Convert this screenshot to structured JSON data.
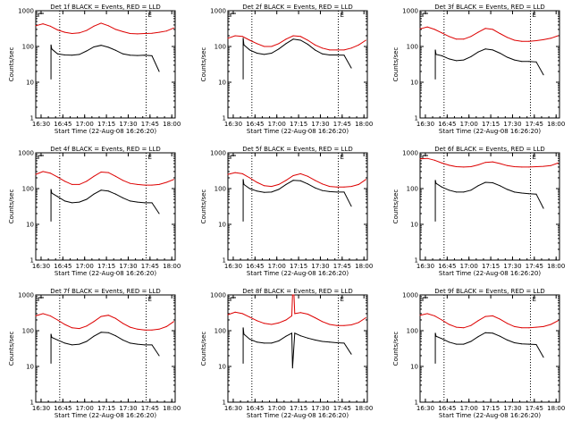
{
  "colors": {
    "events": "#000000",
    "lld": "#dd0000"
  },
  "common": {
    "ylabel": "Counts/sec",
    "xlabel": "Start Time (22-Aug-08 16:26:20)",
    "xticks": [
      "16:30",
      "16:45",
      "17:00",
      "17:15",
      "17:30",
      "17:45",
      "18:00"
    ],
    "xticks_min": [
      3.67,
      18.67,
      33.67,
      48.67,
      63.67,
      78.67,
      93.67
    ],
    "yticks": [
      "1",
      "10",
      "100",
      "1000"
    ],
    "ylim": [
      1,
      1000
    ],
    "xlim_min": [
      0,
      96
    ],
    "markers_min": [
      16.5,
      76.0
    ],
    "flag_text": "E"
  },
  "chart_data": [
    {
      "type": "line",
      "title": "Det 1f BLACK = Events, RED = LLD",
      "event_start": 10.5,
      "event_end": 85.0,
      "series": [
        {
          "name": "Events",
          "x": [
            10.5,
            11,
            15,
            20,
            25,
            30,
            35,
            40,
            45,
            50,
            55,
            60,
            65,
            70,
            75,
            80,
            85
          ],
          "values": [
            110,
            85,
            62,
            58,
            57,
            60,
            75,
            97,
            108,
            95,
            78,
            62,
            57,
            56,
            57,
            55,
            20
          ]
        },
        {
          "name": "LLD",
          "x": [
            0,
            5,
            10,
            15,
            20,
            25,
            30,
            35,
            40,
            45,
            50,
            55,
            60,
            65,
            70,
            75,
            80,
            85,
            90,
            95
          ],
          "values": [
            380,
            430,
            370,
            290,
            250,
            230,
            240,
            280,
            370,
            450,
            380,
            300,
            260,
            230,
            225,
            230,
            235,
            250,
            270,
            330
          ]
        }
      ]
    },
    {
      "type": "line",
      "title": "Det 2f BLACK = Events, RED = LLD",
      "event_start": 10.5,
      "event_end": 85.0,
      "series": [
        {
          "name": "Events",
          "x": [
            10.5,
            11,
            15,
            20,
            25,
            30,
            35,
            40,
            45,
            50,
            55,
            60,
            65,
            70,
            75,
            80,
            85
          ],
          "values": [
            170,
            110,
            80,
            65,
            60,
            65,
            85,
            120,
            160,
            150,
            115,
            80,
            62,
            58,
            58,
            57,
            25
          ]
        },
        {
          "name": "LLD",
          "x": [
            0,
            5,
            10,
            15,
            20,
            25,
            30,
            35,
            40,
            45,
            50,
            55,
            60,
            65,
            70,
            75,
            80,
            85,
            90,
            95
          ],
          "values": [
            170,
            200,
            190,
            150,
            120,
            100,
            100,
            120,
            160,
            200,
            190,
            150,
            110,
            90,
            80,
            80,
            80,
            90,
            110,
            150
          ]
        }
      ]
    },
    {
      "type": "line",
      "title": "Det 3f BLACK = Events, RED = LLD",
      "event_start": 10.5,
      "event_end": 85.0,
      "series": [
        {
          "name": "Events",
          "x": [
            10.5,
            11,
            15,
            20,
            25,
            30,
            35,
            40,
            45,
            50,
            55,
            60,
            65,
            70,
            75,
            80,
            85
          ],
          "values": [
            80,
            60,
            55,
            45,
            40,
            42,
            52,
            70,
            85,
            80,
            65,
            50,
            42,
            38,
            38,
            37,
            16
          ]
        },
        {
          "name": "LLD",
          "x": [
            0,
            5,
            10,
            15,
            20,
            25,
            30,
            35,
            40,
            45,
            50,
            55,
            60,
            65,
            70,
            75,
            80,
            85,
            90,
            95
          ],
          "values": [
            310,
            350,
            300,
            240,
            190,
            160,
            160,
            190,
            250,
            320,
            300,
            230,
            180,
            150,
            140,
            140,
            145,
            155,
            170,
            200
          ]
        }
      ]
    },
    {
      "type": "line",
      "title": "Det 4f BLACK = Events, RED = LLD",
      "event_start": 10.5,
      "event_end": 85.0,
      "series": [
        {
          "name": "Events",
          "x": [
            10.5,
            11,
            15,
            20,
            25,
            30,
            35,
            40,
            45,
            50,
            55,
            60,
            65,
            70,
            75,
            80,
            85
          ],
          "values": [
            95,
            75,
            60,
            45,
            40,
            42,
            50,
            70,
            90,
            85,
            70,
            55,
            45,
            42,
            40,
            40,
            20
          ]
        },
        {
          "name": "LLD",
          "x": [
            0,
            5,
            10,
            15,
            20,
            25,
            30,
            35,
            40,
            45,
            50,
            55,
            60,
            65,
            70,
            75,
            80,
            85,
            90,
            95
          ],
          "values": [
            250,
            300,
            270,
            210,
            160,
            130,
            130,
            160,
            220,
            290,
            280,
            220,
            170,
            140,
            130,
            125,
            125,
            130,
            150,
            180
          ]
        }
      ]
    },
    {
      "type": "line",
      "title": "Det 5f BLACK = Events, RED = LLD",
      "event_start": 10.5,
      "event_end": 85.0,
      "series": [
        {
          "name": "Events",
          "x": [
            10.5,
            11,
            15,
            20,
            25,
            30,
            35,
            40,
            45,
            50,
            55,
            60,
            65,
            70,
            75,
            80,
            85
          ],
          "values": [
            180,
            130,
            100,
            85,
            78,
            80,
            95,
            130,
            170,
            165,
            135,
            105,
            88,
            82,
            80,
            80,
            32
          ]
        },
        {
          "name": "LLD",
          "x": [
            0,
            5,
            10,
            15,
            20,
            25,
            30,
            35,
            40,
            45,
            50,
            55,
            60,
            65,
            70,
            75,
            80,
            85,
            90,
            95
          ],
          "values": [
            250,
            280,
            260,
            200,
            150,
            120,
            115,
            130,
            170,
            230,
            260,
            220,
            170,
            135,
            115,
            110,
            110,
            115,
            130,
            180
          ]
        }
      ]
    },
    {
      "type": "line",
      "title": "Det 6f BLACK = Events, RED = LLD",
      "event_start": 10.5,
      "event_end": 85.0,
      "series": [
        {
          "name": "Events",
          "x": [
            10.5,
            11,
            15,
            20,
            25,
            30,
            35,
            40,
            45,
            50,
            55,
            60,
            65,
            70,
            75,
            80,
            85
          ],
          "values": [
            170,
            140,
            110,
            90,
            80,
            80,
            90,
            120,
            150,
            145,
            120,
            95,
            80,
            75,
            72,
            70,
            28
          ]
        },
        {
          "name": "LLD",
          "x": [
            0,
            5,
            10,
            15,
            20,
            25,
            30,
            35,
            40,
            45,
            50,
            55,
            60,
            65,
            70,
            75,
            80,
            85,
            90,
            95
          ],
          "values": [
            680,
            700,
            620,
            520,
            450,
            410,
            400,
            410,
            460,
            540,
            560,
            500,
            440,
            410,
            400,
            400,
            410,
            420,
            440,
            520
          ]
        }
      ]
    },
    {
      "type": "line",
      "title": "Det 7f BLACK = Events, RED = LLD",
      "event_start": 10.5,
      "event_end": 85.0,
      "series": [
        {
          "name": "Events",
          "x": [
            10.5,
            11,
            15,
            20,
            25,
            30,
            35,
            40,
            45,
            50,
            55,
            60,
            65,
            70,
            75,
            80,
            85
          ],
          "values": [
            80,
            65,
            55,
            45,
            40,
            42,
            50,
            70,
            90,
            88,
            72,
            55,
            45,
            42,
            40,
            40,
            20
          ]
        },
        {
          "name": "LLD",
          "x": [
            0,
            5,
            10,
            15,
            20,
            25,
            30,
            35,
            40,
            45,
            50,
            55,
            60,
            65,
            70,
            75,
            80,
            85,
            90,
            95
          ],
          "values": [
            260,
            300,
            260,
            200,
            150,
            120,
            115,
            135,
            180,
            250,
            270,
            220,
            160,
            125,
            110,
            105,
            105,
            110,
            130,
            180
          ]
        }
      ]
    },
    {
      "type": "line",
      "title": "Det 8f BLACK = Events, RED = LLD",
      "event_start": 10.5,
      "event_end": 85.0,
      "series": [
        {
          "name": "Events",
          "x": [
            10.5,
            11,
            15,
            20,
            25,
            30,
            35,
            40,
            44,
            44.5,
            46,
            50,
            55,
            60,
            65,
            70,
            75,
            80,
            85
          ],
          "values": [
            120,
            80,
            58,
            48,
            45,
            45,
            52,
            70,
            85,
            9,
            85,
            72,
            62,
            55,
            50,
            48,
            46,
            45,
            22
          ]
        },
        {
          "name": "LLD",
          "x": [
            0,
            5,
            10,
            15,
            20,
            25,
            30,
            35,
            40,
            44,
            44.5,
            45.5,
            46,
            50,
            55,
            60,
            65,
            70,
            75,
            80,
            85,
            90,
            95
          ],
          "values": [
            280,
            330,
            300,
            240,
            190,
            160,
            150,
            165,
            200,
            260,
            1000,
            1000,
            300,
            320,
            290,
            230,
            180,
            150,
            140,
            140,
            145,
            170,
            230
          ]
        }
      ]
    },
    {
      "type": "line",
      "title": "Det 9f BLACK = Events, RED = LLD",
      "event_start": 10.5,
      "event_end": 85.0,
      "series": [
        {
          "name": "Events",
          "x": [
            10.5,
            11,
            15,
            20,
            25,
            30,
            35,
            40,
            45,
            50,
            55,
            60,
            65,
            70,
            75,
            80,
            85
          ],
          "values": [
            85,
            70,
            60,
            48,
            42,
            42,
            50,
            68,
            88,
            85,
            70,
            55,
            46,
            43,
            42,
            41,
            18
          ]
        },
        {
          "name": "LLD",
          "x": [
            0,
            5,
            10,
            15,
            20,
            25,
            30,
            35,
            40,
            45,
            50,
            55,
            60,
            65,
            70,
            75,
            80,
            85,
            90,
            95
          ],
          "values": [
            270,
            300,
            260,
            200,
            150,
            125,
            120,
            140,
            190,
            250,
            260,
            210,
            160,
            130,
            120,
            120,
            125,
            130,
            150,
            190
          ]
        }
      ]
    }
  ]
}
